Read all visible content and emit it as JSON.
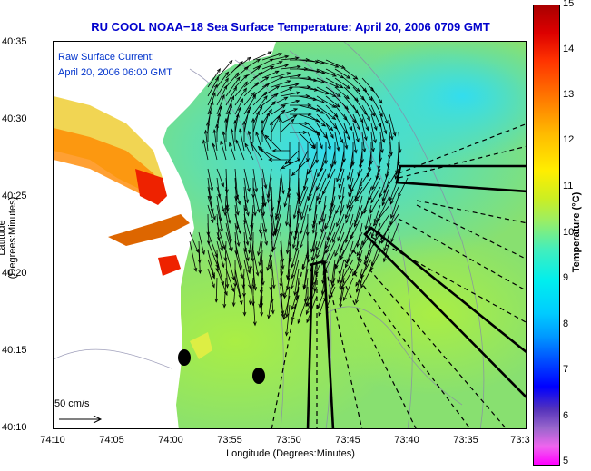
{
  "title": "RU COOL  NOAA−18  Sea Surface Temperature:  April 20, 2006 0709 GMT",
  "legend": {
    "line1": "Raw Surface Current:",
    "line2": "April 20, 2006 06:00 GMT"
  },
  "scale_label": "50 cm/s",
  "axes": {
    "ylabel": "Latitude (Degrees:Minutes)",
    "xlabel": "Longitude (Degrees:Minutes)",
    "yticks": [
      "40:35",
      "40:30",
      "40:25",
      "40:20",
      "40:15",
      "40:10"
    ],
    "xticks": [
      "74:10",
      "74:05",
      "74:00",
      "73:55",
      "73:50",
      "73:45",
      "73:40",
      "73:35",
      "73:3"
    ]
  },
  "colorbar": {
    "label": "Temperature (°C)",
    "ticks": [
      "15",
      "14",
      "13",
      "12",
      "11",
      "10",
      "9",
      "8",
      "7",
      "6",
      "5"
    ],
    "range": [
      5,
      15
    ]
  },
  "colors": {
    "title": "#0000cc",
    "legend_text": "#0033cc",
    "land": "#ffffff",
    "sea_base": "#88e070"
  }
}
